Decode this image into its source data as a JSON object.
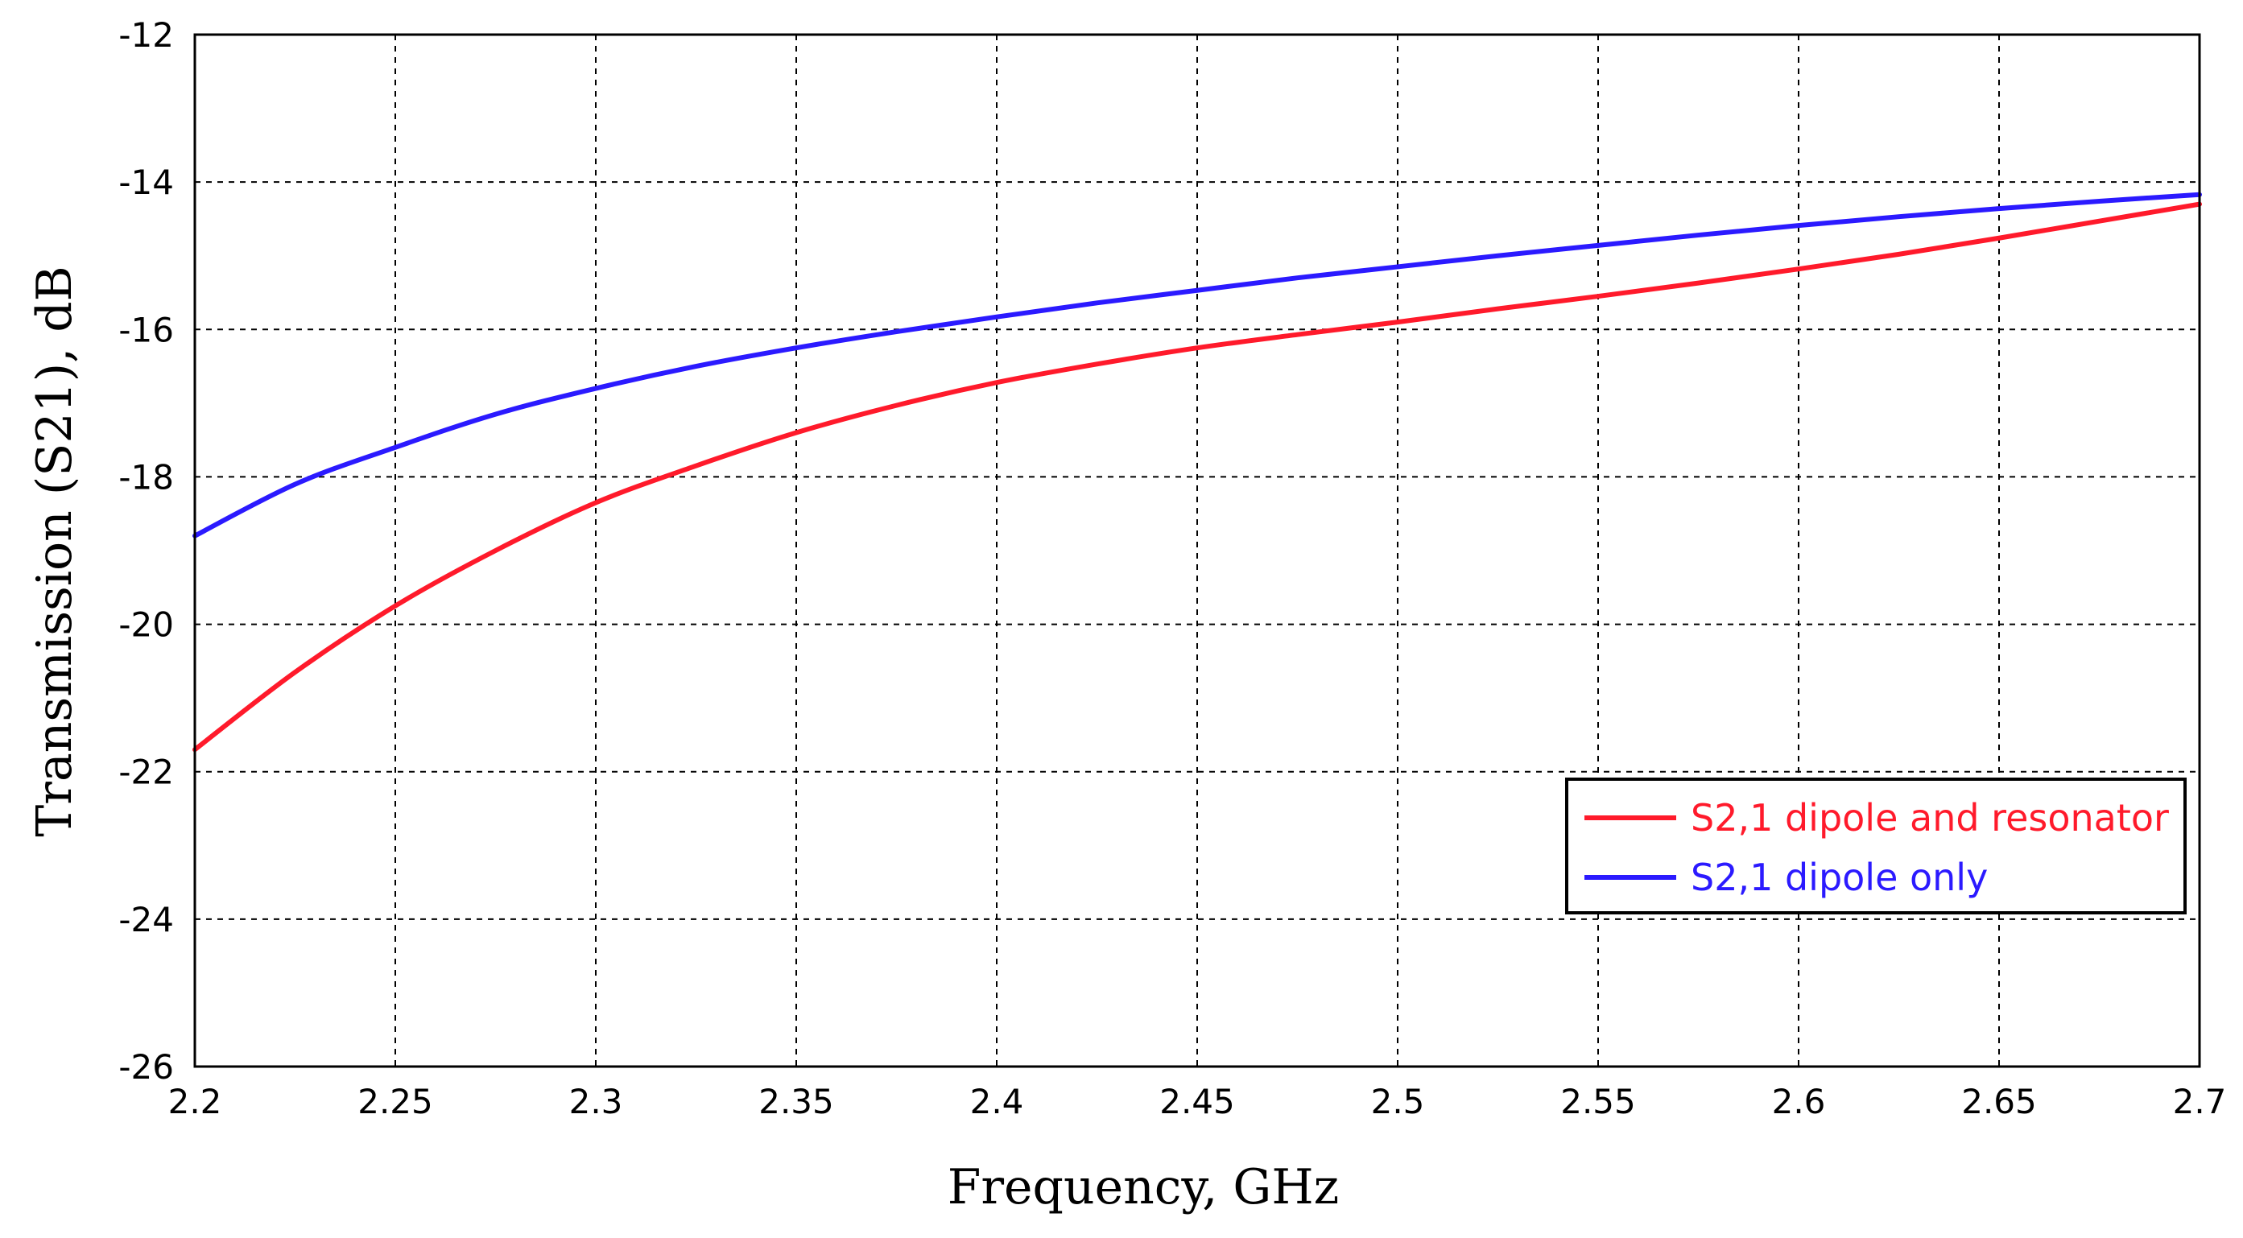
{
  "chart_data": {
    "type": "line",
    "title": "",
    "xlabel": "Frequency, GHz",
    "ylabel": "Transmission (S21), dB",
    "xlim": [
      2.2,
      2.7
    ],
    "ylim": [
      -26,
      -12
    ],
    "grid": true,
    "legend_position": "bottom-right",
    "x_ticks": [
      "2.2",
      "2.25",
      "2.3",
      "2.35",
      "2.4",
      "2.45",
      "2.5",
      "2.55",
      "2.6",
      "2.65",
      "2.7"
    ],
    "y_ticks": [
      "-12",
      "-14",
      "-16",
      "-18",
      "-20",
      "-22",
      "-24",
      "-26"
    ],
    "series": [
      {
        "name": "S2,1 dipole and resonator",
        "color": "#ff1a2b",
        "x": [
          2.2,
          2.225,
          2.25,
          2.275,
          2.3,
          2.325,
          2.35,
          2.375,
          2.4,
          2.425,
          2.45,
          2.475,
          2.5,
          2.525,
          2.55,
          2.575,
          2.6,
          2.625,
          2.65,
          2.675,
          2.7
        ],
        "y": [
          -21.7,
          -20.65,
          -19.75,
          -19.0,
          -18.35,
          -17.85,
          -17.4,
          -17.03,
          -16.72,
          -16.47,
          -16.25,
          -16.07,
          -15.9,
          -15.72,
          -15.55,
          -15.37,
          -15.18,
          -14.98,
          -14.76,
          -14.53,
          -14.3
        ]
      },
      {
        "name": "S2,1 dipole only",
        "color": "#2b1aff",
        "x": [
          2.2,
          2.225,
          2.25,
          2.275,
          2.3,
          2.325,
          2.35,
          2.375,
          2.4,
          2.425,
          2.45,
          2.475,
          2.5,
          2.525,
          2.55,
          2.575,
          2.6,
          2.625,
          2.65,
          2.675,
          2.7
        ],
        "y": [
          -18.8,
          -18.1,
          -17.6,
          -17.15,
          -16.8,
          -16.5,
          -16.25,
          -16.03,
          -15.83,
          -15.64,
          -15.47,
          -15.3,
          -15.15,
          -15.0,
          -14.86,
          -14.72,
          -14.59,
          -14.47,
          -14.36,
          -14.26,
          -14.17
        ]
      }
    ]
  }
}
